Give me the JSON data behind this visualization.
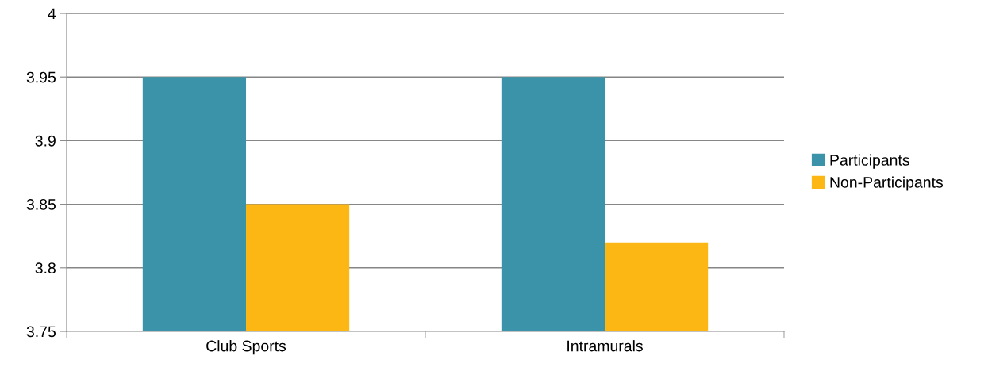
{
  "chart_data": {
    "type": "bar",
    "categories": [
      "Club Sports",
      "Intramurals"
    ],
    "series": [
      {
        "name": "Participants",
        "color": "#3a93a8",
        "values": [
          3.95,
          3.95
        ]
      },
      {
        "name": "Non-Participants",
        "color": "#fdb714",
        "values": [
          3.85,
          3.82
        ]
      }
    ],
    "ylim": [
      3.75,
      4
    ],
    "yticks": [
      3.75,
      3.8,
      3.85,
      3.9,
      3.95,
      4
    ],
    "grid": "y",
    "legend": "right"
  }
}
